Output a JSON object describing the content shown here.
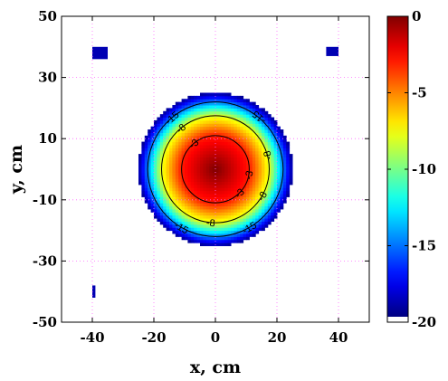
{
  "chart_data": {
    "type": "heatmap",
    "title": "",
    "xlabel": "x, cm",
    "ylabel": "y, cm",
    "xlim": [
      -50,
      50
    ],
    "ylim": [
      -50,
      50
    ],
    "xticks": [
      -40,
      -20,
      0,
      20,
      40
    ],
    "yticks": [
      -50,
      -30,
      -10,
      10,
      30,
      50
    ],
    "grid": true,
    "colormap": "jet",
    "colorbar": {
      "range": [
        -20,
        0
      ],
      "ticks": [
        0,
        -5,
        -10,
        -15,
        -20
      ]
    },
    "field": {
      "shape": "radial",
      "center": [
        0,
        0
      ],
      "edge_radius_cm": 25,
      "value_at_center": 0,
      "value_at_edge": -19.5,
      "background_value": "below_range",
      "contour_radii_cm": {
        "-3": 11,
        "-8": 17.5,
        "-15": 22
      }
    },
    "contours": [
      {
        "level": -3,
        "label": "-3"
      },
      {
        "level": -8,
        "label": "-8"
      },
      {
        "level": -15,
        "label": "-15"
      }
    ],
    "corner_patches": [
      {
        "x_range": [
          -40,
          -35
        ],
        "y_range": [
          36,
          40
        ],
        "value": -19
      },
      {
        "x_range": [
          36,
          40
        ],
        "y_range": [
          37,
          40
        ],
        "value": -19
      },
      {
        "x_range": [
          -40,
          -39
        ],
        "y_range": [
          -42,
          -38
        ],
        "value": -19
      }
    ]
  }
}
